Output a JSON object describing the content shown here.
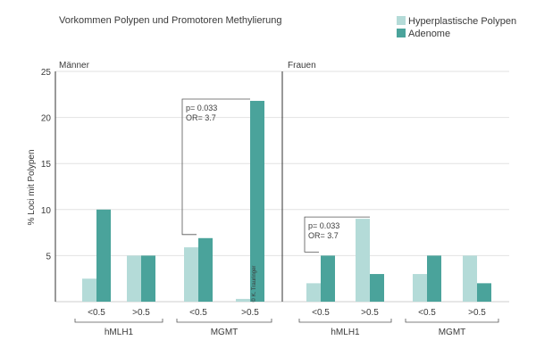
{
  "chart_data": {
    "type": "bar",
    "title": "Vorkommen Polypen und Promotoren Methylierung",
    "ylabel": "% Loci mit Polypen",
    "ylim": [
      0,
      25
    ],
    "yticks": [
      5,
      10,
      15,
      20,
      25
    ],
    "grid": true,
    "legend_position": "top-right",
    "legend": [
      {
        "name": "Hyperplastische Polypen",
        "color": "#b4dbd8"
      },
      {
        "name": "Adenome",
        "color": "#4aa39b"
      }
    ],
    "watermark": "© K. Trauringer",
    "panels": [
      {
        "title": "Männer",
        "categories": [
          "<0.5",
          ">0.5",
          "<0.5",
          ">0.5"
        ],
        "groups": [
          {
            "label": "hMLH1",
            "categories": [
              "<0.5",
              ">0.5"
            ]
          },
          {
            "label": "MGMT",
            "categories": [
              "<0.5",
              ">0.5"
            ]
          }
        ],
        "series": [
          {
            "name": "Hyperplastische Polypen",
            "values": [
              2.5,
              5,
              5.9,
              0.3
            ]
          },
          {
            "name": "Adenome",
            "values": [
              10,
              5,
              6.9,
              21.8
            ]
          }
        ],
        "annotation": {
          "p": "p= 0.033",
          "or": "OR= 3.7",
          "from_category": 2,
          "to_category": 3
        }
      },
      {
        "title": "Frauen",
        "categories": [
          "<0.5",
          ">0.5",
          "<0.5",
          ">0.5"
        ],
        "groups": [
          {
            "label": "hMLH1",
            "categories": [
              "<0.5",
              ">0.5"
            ]
          },
          {
            "label": "MGMT",
            "categories": [
              "<0.5",
              ">0.5"
            ]
          }
        ],
        "series": [
          {
            "name": "Hyperplastische Polypen",
            "values": [
              2,
              9,
              3,
              5
            ]
          },
          {
            "name": "Adenome",
            "values": [
              5,
              3,
              5,
              2
            ]
          }
        ],
        "annotation": {
          "p": "p= 0.033",
          "or": "OR= 3.7",
          "from_category": 0,
          "to_category": 1
        }
      }
    ]
  }
}
